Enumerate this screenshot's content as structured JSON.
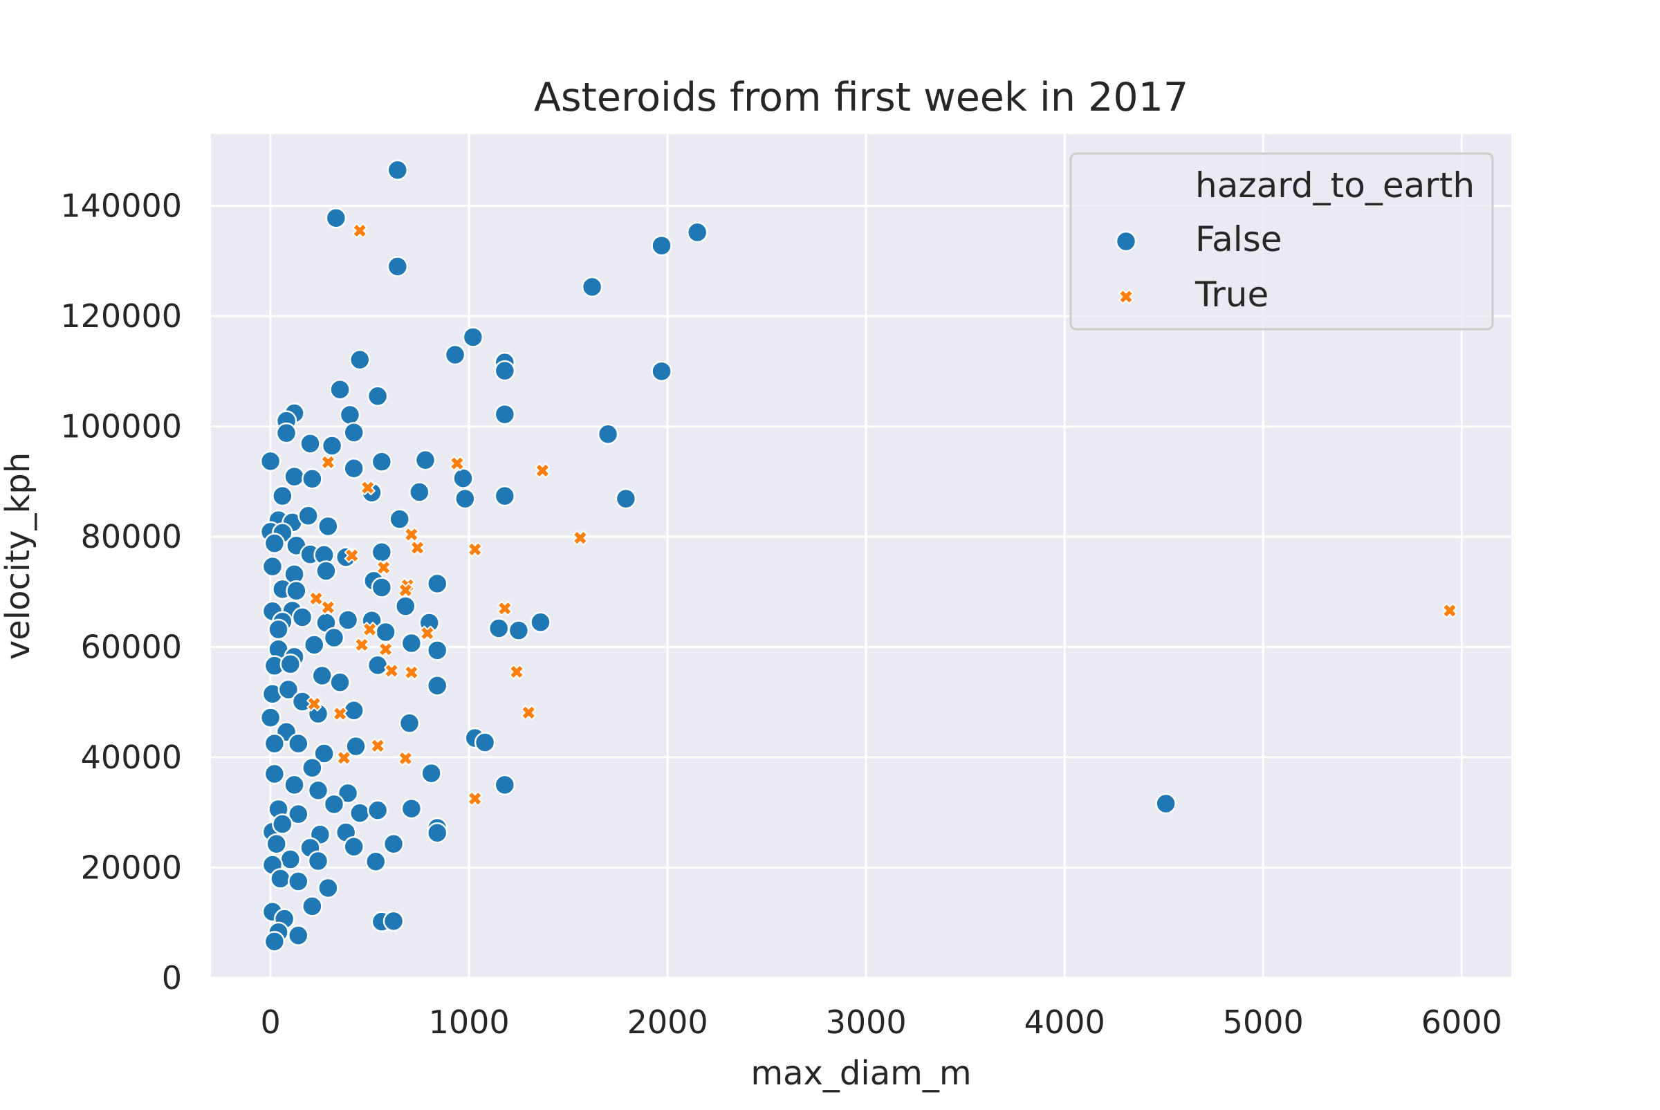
{
  "chart_data": {
    "type": "scatter",
    "title": "Asteroids from first week in 2017",
    "xlabel": "max_diam_m",
    "ylabel": "velocity_kph",
    "xlim": [
      -300,
      6250
    ],
    "ylim": [
      0,
      153000
    ],
    "xticks": [
      0,
      1000,
      2000,
      3000,
      4000,
      5000,
      6000
    ],
    "yticks": [
      0,
      20000,
      40000,
      60000,
      80000,
      100000,
      120000,
      140000
    ],
    "grid": true,
    "legend": {
      "title": "hazard_to_earth",
      "placement": "top-right",
      "entries": [
        {
          "label": "False",
          "marker": "circle",
          "color": "#1f77b4"
        },
        {
          "label": "True",
          "marker": "x",
          "color": "#ff7f0e"
        }
      ]
    },
    "series": [
      {
        "name": "False",
        "marker": "circle",
        "color": "#1f77b4",
        "points": [
          [
            640,
            146500
          ],
          [
            330,
            137800
          ],
          [
            640,
            129000
          ],
          [
            2150,
            135200
          ],
          [
            1970,
            132800
          ],
          [
            1620,
            125300
          ],
          [
            1020,
            116200
          ],
          [
            930,
            113000
          ],
          [
            450,
            112100
          ],
          [
            1180,
            111600
          ],
          [
            1180,
            110100
          ],
          [
            1970,
            110000
          ],
          [
            350,
            106700
          ],
          [
            540,
            105500
          ],
          [
            120,
            102400
          ],
          [
            400,
            102100
          ],
          [
            1180,
            102200
          ],
          [
            80,
            101000
          ],
          [
            80,
            98800
          ],
          [
            420,
            98900
          ],
          [
            1700,
            98600
          ],
          [
            200,
            96900
          ],
          [
            310,
            96500
          ],
          [
            0,
            93700
          ],
          [
            560,
            93600
          ],
          [
            780,
            93900
          ],
          [
            420,
            92400
          ],
          [
            120,
            90900
          ],
          [
            210,
            90500
          ],
          [
            970,
            90600
          ],
          [
            60,
            87400
          ],
          [
            510,
            88000
          ],
          [
            750,
            88100
          ],
          [
            1180,
            87400
          ],
          [
            980,
            86900
          ],
          [
            1790,
            86900
          ],
          [
            650,
            83200
          ],
          [
            40,
            83000
          ],
          [
            110,
            82600
          ],
          [
            190,
            83800
          ],
          [
            290,
            81900
          ],
          [
            0,
            80900
          ],
          [
            60,
            80700
          ],
          [
            20,
            78800
          ],
          [
            130,
            78400
          ],
          [
            560,
            77200
          ],
          [
            200,
            76800
          ],
          [
            270,
            76700
          ],
          [
            380,
            76300
          ],
          [
            10,
            74600
          ],
          [
            120,
            73200
          ],
          [
            280,
            73800
          ],
          [
            520,
            72000
          ],
          [
            840,
            71500
          ],
          [
            560,
            70800
          ],
          [
            60,
            70500
          ],
          [
            130,
            70200
          ],
          [
            680,
            67400
          ],
          [
            10,
            66500
          ],
          [
            110,
            66600
          ],
          [
            60,
            64600
          ],
          [
            160,
            65400
          ],
          [
            280,
            64400
          ],
          [
            390,
            64900
          ],
          [
            510,
            64800
          ],
          [
            800,
            64400
          ],
          [
            1150,
            63400
          ],
          [
            1250,
            63000
          ],
          [
            1360,
            64500
          ],
          [
            40,
            63200
          ],
          [
            320,
            61700
          ],
          [
            580,
            62700
          ],
          [
            220,
            60400
          ],
          [
            710,
            60700
          ],
          [
            840,
            59400
          ],
          [
            40,
            59600
          ],
          [
            120,
            58200
          ],
          [
            20,
            56600
          ],
          [
            100,
            56900
          ],
          [
            260,
            54800
          ],
          [
            350,
            53600
          ],
          [
            540,
            56700
          ],
          [
            840,
            53000
          ],
          [
            10,
            51500
          ],
          [
            90,
            52300
          ],
          [
            160,
            50100
          ],
          [
            420,
            48500
          ],
          [
            240,
            47900
          ],
          [
            700,
            46200
          ],
          [
            0,
            47200
          ],
          [
            80,
            44600
          ],
          [
            20,
            42500
          ],
          [
            140,
            42500
          ],
          [
            1030,
            43500
          ],
          [
            1080,
            42700
          ],
          [
            270,
            40700
          ],
          [
            430,
            42000
          ],
          [
            210,
            38100
          ],
          [
            810,
            37100
          ],
          [
            20,
            37000
          ],
          [
            120,
            35000
          ],
          [
            240,
            34000
          ],
          [
            390,
            33500
          ],
          [
            1180,
            35000
          ],
          [
            320,
            31500
          ],
          [
            40,
            30600
          ],
          [
            140,
            29700
          ],
          [
            450,
            29900
          ],
          [
            540,
            30400
          ],
          [
            710,
            30700
          ],
          [
            380,
            26400
          ],
          [
            250,
            26000
          ],
          [
            10,
            26500
          ],
          [
            60,
            27900
          ],
          [
            840,
            27200
          ],
          [
            840,
            26300
          ],
          [
            420,
            23800
          ],
          [
            30,
            24300
          ],
          [
            200,
            23600
          ],
          [
            620,
            24300
          ],
          [
            100,
            21500
          ],
          [
            240,
            21200
          ],
          [
            530,
            21100
          ],
          [
            10,
            20500
          ],
          [
            50,
            18000
          ],
          [
            140,
            17500
          ],
          [
            290,
            16300
          ],
          [
            210,
            13000
          ],
          [
            10,
            12000
          ],
          [
            70,
            10700
          ],
          [
            560,
            10200
          ],
          [
            620,
            10300
          ],
          [
            40,
            8300
          ],
          [
            20,
            6600
          ],
          [
            140,
            7700
          ],
          [
            4510,
            31600
          ]
        ]
      },
      {
        "name": "True",
        "marker": "x",
        "color": "#ff7f0e",
        "points": [
          [
            450,
            135500
          ],
          [
            1370,
            92000
          ],
          [
            940,
            93300
          ],
          [
            490,
            88900
          ],
          [
            290,
            93500
          ],
          [
            1560,
            79800
          ],
          [
            710,
            80400
          ],
          [
            740,
            78000
          ],
          [
            1030,
            77700
          ],
          [
            410,
            76600
          ],
          [
            570,
            74400
          ],
          [
            690,
            71200
          ],
          [
            680,
            70300
          ],
          [
            230,
            68800
          ],
          [
            290,
            67200
          ],
          [
            1180,
            67000
          ],
          [
            500,
            63200
          ],
          [
            790,
            62500
          ],
          [
            580,
            59600
          ],
          [
            460,
            60400
          ],
          [
            610,
            55700
          ],
          [
            710,
            55400
          ],
          [
            1240,
            55500
          ],
          [
            220,
            49700
          ],
          [
            350,
            47900
          ],
          [
            1300,
            48100
          ],
          [
            540,
            42100
          ],
          [
            680,
            39800
          ],
          [
            370,
            39900
          ],
          [
            1030,
            32500
          ],
          [
            5940,
            66600
          ]
        ]
      }
    ]
  }
}
